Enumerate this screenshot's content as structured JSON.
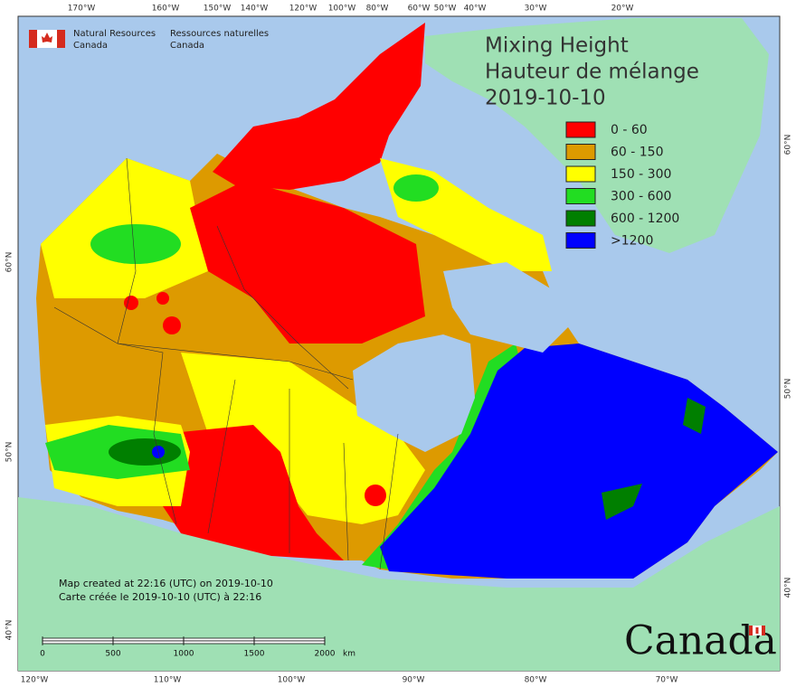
{
  "header": {
    "org_en": [
      "Natural Resources",
      "Canada"
    ],
    "org_fr": [
      "Ressources naturelles",
      "Canada"
    ]
  },
  "title": [
    "Mixing Height",
    "Hauteur de mélange",
    "2019-10-10"
  ],
  "legend": [
    {
      "label": "0 - 60",
      "color": "#ff0000"
    },
    {
      "label": "60 - 150",
      "color": "#dd9a00"
    },
    {
      "label": "150 - 300",
      "color": "#ffff00"
    },
    {
      "label": "300 - 600",
      "color": "#22dd22"
    },
    {
      "label": "600 - 1200",
      "color": "#007f00"
    },
    {
      "label": ">1200",
      "color": "#0000ff"
    }
  ],
  "graticule": {
    "top": [
      "170°W",
      "160°W",
      "150°W",
      "140°W",
      "120°W",
      "100°W",
      "80°W",
      "60°W",
      "50°W",
      "40°W",
      "30°W",
      "20°W"
    ],
    "bottom": [
      "120°W",
      "110°W",
      "100°W",
      "90°W",
      "80°W",
      "70°W"
    ],
    "left": [
      "60°N",
      "50°N",
      "40°N"
    ],
    "right": [
      "60°N",
      "50°N",
      "40°N"
    ]
  },
  "notes": [
    "Map created at 22:16 (UTC) on 2019-10-10",
    "Carte créée le 2019-10-10 (UTC) à 22:16"
  ],
  "scale_bar": {
    "ticks": [
      0,
      500,
      1000,
      1500,
      2000
    ],
    "unit": "km"
  },
  "wordmark": "Canada"
}
